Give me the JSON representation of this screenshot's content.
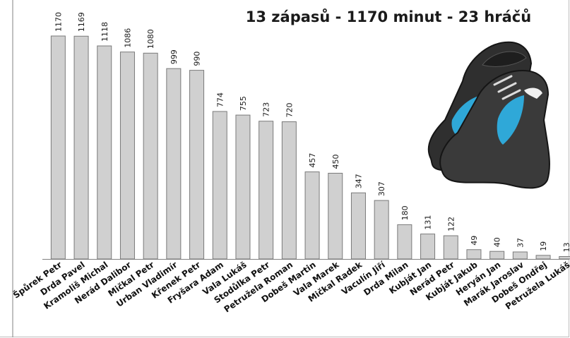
{
  "chart_data": {
    "type": "bar",
    "title": "13 zápasů - 1170 minut - 23 hráčů",
    "categories": [
      "Špůrek Petr",
      "Drda Pavel",
      "Kramoliš Michal",
      "Nerád Dalibor",
      "Mičkal Petr",
      "Urban Vladimír",
      "Křenek Petr",
      "Fryšara Adam",
      "Vala Lukáš",
      "Stodůlka Petr",
      "Petružela Roman",
      "Dobeš Martin",
      "Vala Marek",
      "Mičkal Radek",
      "Vaculín Jiří",
      "Drda Milan",
      "Kubját Jan",
      "Nerád Petr",
      "Kubját Jakub",
      "Heryán Jan",
      "Marák Jaroslav",
      "Dobeš Ondřej",
      "Petružela Lukáš"
    ],
    "values": [
      1170,
      1169,
      1118,
      1086,
      1080,
      999,
      990,
      774,
      755,
      723,
      720,
      457,
      450,
      347,
      307,
      180,
      131,
      122,
      49,
      40,
      37,
      19,
      13
    ],
    "ylim": [
      0,
      1170
    ],
    "grid": false,
    "legend": "none",
    "colors": {
      "bar_fill": "#d0d0d0",
      "bar_stroke": "#7a7a7a",
      "axis": "#808080"
    }
  },
  "image": {
    "name": "football-boots-icon"
  }
}
